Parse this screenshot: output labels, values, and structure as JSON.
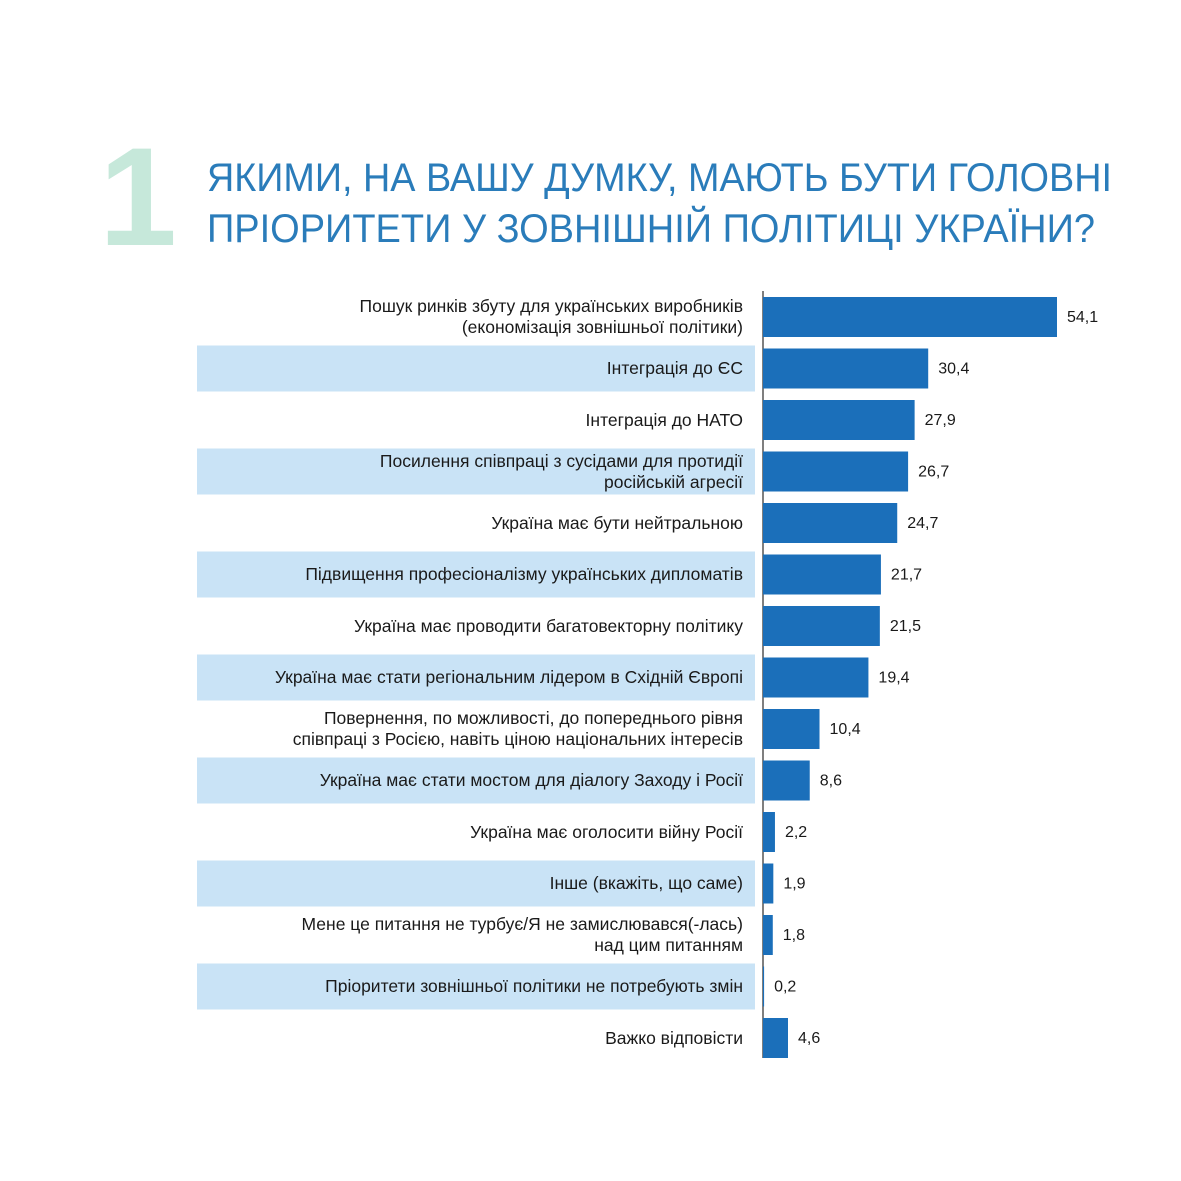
{
  "chart_data": {
    "type": "bar",
    "question_number": "1",
    "title": [
      "ЯКИМИ, НА ВАШУ ДУМКУ, МАЮТЬ БУТИ ГОЛОВНІ",
      "ПРІОРИТЕТИ У ЗОВНІШНІЙ ПОЛІТИЦІ УКРАЇНИ?"
    ],
    "categories": [
      "Пошук ринків збуту для українських виробників\n(економізація зовнішньої політики)",
      "Інтеграція до ЄС",
      "Інтеграція до НАТО",
      "Посилення співпраці з сусідами для протидії\nросійській агресії",
      "Україна має бути нейтральною",
      "Підвищення професіоналізму українських дипломатів",
      "Україна має проводити багатовекторну політику",
      "Україна має стати регіональним лідером в Східній Європі",
      "Повернення, по можливості, до попереднього рівня\nспівпраці з Росією, навіть ціною національних інтересів",
      "Україна має стати мостом для діалогу Заходу і Росії",
      "Україна має оголосити війну Росії",
      "Інше (вкажіть, що саме)",
      "Мене це питання не турбує/Я не замислювався(-лась)\nнад цим питанням",
      "Пріоритети зовнішньої політики не потребують змін",
      "Важко відповісти"
    ],
    "values": [
      54.1,
      30.4,
      27.9,
      26.7,
      24.7,
      21.7,
      21.5,
      19.4,
      10.4,
      8.6,
      2.2,
      1.9,
      1.8,
      0.2,
      4.6
    ],
    "value_labels": [
      "54,1",
      "30,4",
      "27,9",
      "26,7",
      "24,7",
      "21,7",
      "21,5",
      "19,4",
      "10,4",
      "8,6",
      "2,2",
      "1,9",
      "1,8",
      "0,2",
      "4,6"
    ],
    "color": "#1b6fba",
    "band_color": "#c9e3f6"
  }
}
